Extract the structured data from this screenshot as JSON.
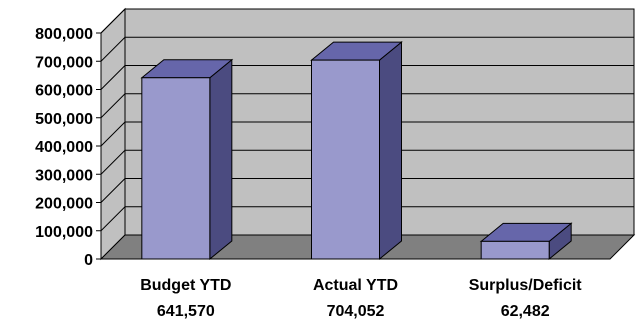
{
  "chart_data": {
    "type": "bar",
    "style": "3d-column",
    "categories": [
      "Budget YTD",
      "Actual YTD",
      "Surplus/Deficit"
    ],
    "category_values_text": [
      "641,570",
      "704,052",
      "62,482"
    ],
    "values": [
      641570,
      704052,
      62482
    ],
    "ylim": [
      0,
      800000
    ],
    "yticks": [
      "0",
      "100,000",
      "200,000",
      "300,000",
      "400,000",
      "500,000",
      "600,000",
      "700,000",
      "800,000"
    ],
    "ytick_values": [
      0,
      100000,
      200000,
      300000,
      400000,
      500000,
      600000,
      700000,
      800000
    ],
    "grid": true,
    "legend": "none",
    "colors": {
      "bar_front": "#9999cc",
      "bar_side": "#4b4b80",
      "bar_top": "#6666aa",
      "wall": "#c0c0c0",
      "floor": "#808080",
      "gridline": "#000000"
    }
  }
}
